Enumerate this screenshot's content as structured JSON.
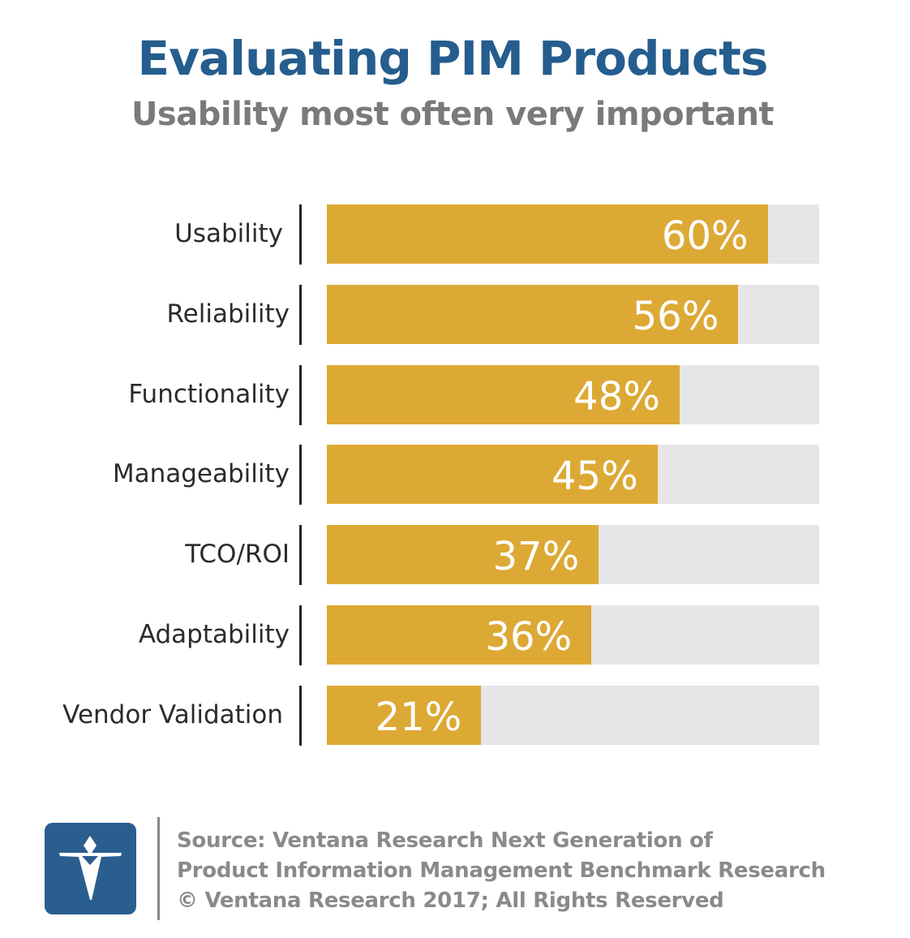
{
  "chart_data": {
    "type": "bar",
    "orientation": "horizontal",
    "title": "Evaluating PIM Products",
    "subtitle": "Usability most often very important",
    "categories": [
      "Usability",
      "Reliability",
      "Functionality",
      "Manageability",
      "TCO/ROI",
      "Adaptability",
      "Vendor Validation"
    ],
    "values": [
      60,
      56,
      48,
      45,
      37,
      36,
      21
    ],
    "value_labels": [
      "60%",
      "56%",
      "48%",
      "45%",
      "37%",
      "36%",
      "21%"
    ],
    "xlim": [
      0,
      67
    ],
    "grid": false,
    "colors": {
      "bar": "#DDA935",
      "track": "#E6E6E8",
      "title": "#255D8E"
    }
  },
  "footer": {
    "source_lines": [
      "Source: Ventana Research Next Generation of",
      "Product Information Management Benchmark Research",
      "© Ventana Research 2017; All Rights Reserved"
    ],
    "logo_text": "Ventana Research"
  }
}
